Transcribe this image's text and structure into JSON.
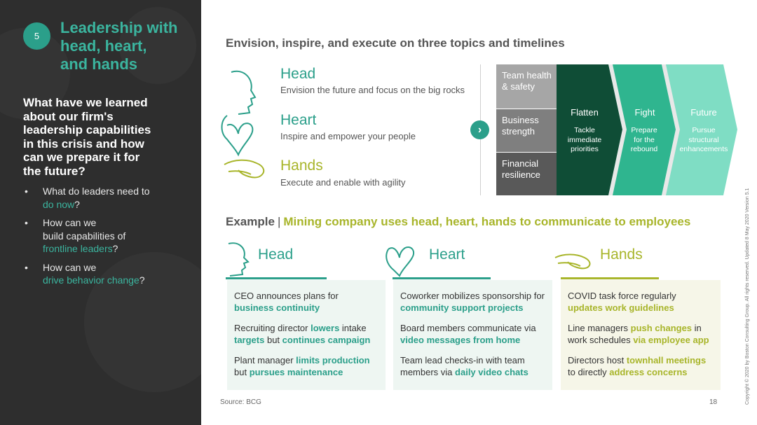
{
  "left": {
    "badge": "5",
    "title_lines": [
      "Leadership with",
      "head, heart,",
      "and hands"
    ],
    "question_lines": [
      "What have we learned",
      "about our firm's",
      "leadership capabilities",
      "in this crisis and how",
      "can we prepare it for",
      "the future?"
    ],
    "bullets": [
      {
        "pre_lines": [
          "What do leaders need to"
        ],
        "highlight": "do now",
        "post": "?"
      },
      {
        "pre_lines": [
          "How can we",
          "build capabilities of"
        ],
        "highlight": "frontline leaders",
        "post": "?"
      },
      {
        "pre_lines": [
          "How can we"
        ],
        "highlight": "drive behavior change",
        "post": "?"
      }
    ],
    "bullet_char": "•"
  },
  "section_title": "Envision, inspire, and execute on three topics and timelines",
  "trio": [
    {
      "title": "Head",
      "desc": "Envision the future and focus on the big rocks"
    },
    {
      "title": "Heart",
      "desc": "Inspire and empower your people"
    },
    {
      "title": "Hands",
      "desc": "Execute and enable with agility"
    }
  ],
  "arrow_glyph": "›",
  "topics": [
    {
      "lines": [
        "Team health",
        "& safety"
      ]
    },
    {
      "lines": [
        "Business",
        "strength"
      ]
    },
    {
      "lines": [
        "Financial",
        "resilience"
      ]
    }
  ],
  "timelines": [
    {
      "title": "Flatten",
      "sub_lines": [
        "Tackle",
        "immediate",
        "priorities"
      ]
    },
    {
      "title": "Fight",
      "sub_lines": [
        "Prepare",
        "for the",
        "rebound"
      ]
    },
    {
      "title": "Future",
      "sub_lines": [
        "Pursue",
        "structural",
        "enhancements"
      ]
    }
  ],
  "example": {
    "label": "Example",
    "separator": "|",
    "text": "Mining company uses head, heart, hands to communicate to employees"
  },
  "columns": [
    {
      "title": "Head",
      "items": [
        {
          "parts": [
            {
              "t": "CEO announces plans for "
            },
            {
              "t": "business continuity",
              "h": true
            }
          ]
        },
        {
          "parts": [
            {
              "t": "Recruiting director "
            },
            {
              "t": "lowers",
              "h": true
            },
            {
              "t": " intake "
            },
            {
              "t": "targets",
              "h": true
            },
            {
              "t": " but "
            },
            {
              "t": "continues campaign",
              "h": true
            }
          ]
        },
        {
          "parts": [
            {
              "t": "Plant manager "
            },
            {
              "t": "limits production",
              "h": true
            },
            {
              "t": " but "
            },
            {
              "t": "pursues maintenance",
              "h": true
            }
          ]
        }
      ]
    },
    {
      "title": "Heart",
      "items": [
        {
          "parts": [
            {
              "t": "Coworker mobilizes sponsorship for "
            },
            {
              "t": "community support projects",
              "h": true
            }
          ]
        },
        {
          "parts": [
            {
              "t": "Board members communicate via "
            },
            {
              "t": "video messages from home",
              "h": true
            }
          ]
        },
        {
          "parts": [
            {
              "t": "Team lead checks-in with team members via "
            },
            {
              "t": "daily video chats",
              "h": true
            }
          ]
        }
      ]
    },
    {
      "title": "Hands",
      "items": [
        {
          "parts": [
            {
              "t": "COVID task force regularly "
            },
            {
              "t": "updates work guidelines",
              "h": true
            }
          ]
        },
        {
          "parts": [
            {
              "t": "Line managers "
            },
            {
              "t": "push changes",
              "h": true
            },
            {
              "t": " in work schedules "
            },
            {
              "t": "via employee app",
              "h": true
            }
          ]
        },
        {
          "parts": [
            {
              "t": "Directors host "
            },
            {
              "t": "townhall meetings",
              "h": true
            },
            {
              "t": " to directly "
            },
            {
              "t": "address concerns",
              "h": true
            }
          ]
        }
      ]
    }
  ],
  "source": "Source: BCG",
  "page_number": "18",
  "copyright": "Copyright © 2020 by Boston Consulting Group. All rights reserved.   Updated 8 May 2020 Version 5.1",
  "colors": {
    "teal": "#2b9f8a",
    "olive": "#a8b52a",
    "dark_panel": "#2e2e2e",
    "dark_green": "#0f4d36",
    "mid_green": "#2fb58f",
    "light_green": "#7fddc4"
  }
}
